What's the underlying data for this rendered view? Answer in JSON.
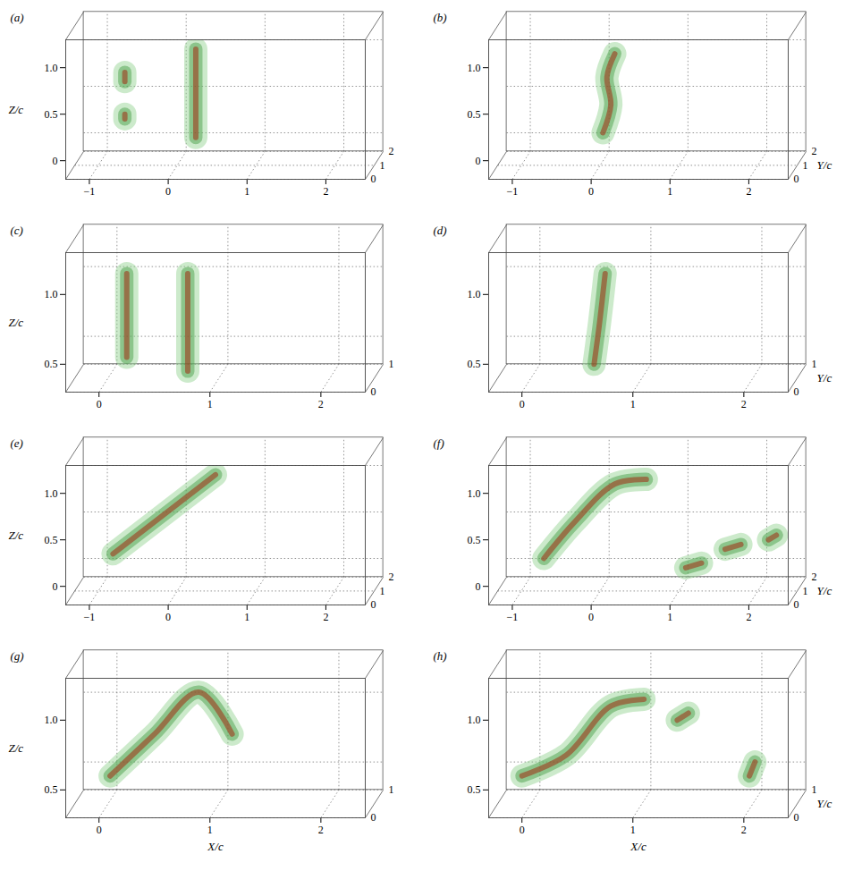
{
  "chart_data": [
    {
      "type": "isosurface",
      "panel": "(a)",
      "zlabel": "Z/c",
      "xlim": [
        -1.3,
        2.5
      ],
      "xticks": [
        -1,
        0,
        1,
        2
      ],
      "zlim": [
        -0.2,
        1.3
      ],
      "zticks": [
        0,
        0.5,
        {
          "value": 1,
          "label": "1.0"
        }
      ],
      "ylim": [
        0,
        2
      ],
      "yticks": [
        0,
        1,
        2
      ],
      "grid": true,
      "surfaces": [
        [
          [
            0.35,
            0.25
          ],
          [
            0.35,
            1.2
          ]
        ],
        [
          [
            -0.55,
            0.45
          ],
          [
            -0.55,
            0.5
          ]
        ],
        [
          [
            -0.55,
            0.85
          ],
          [
            -0.55,
            0.95
          ]
        ]
      ]
    },
    {
      "type": "isosurface",
      "panel": "(b)",
      "ylabel": "Y/c",
      "xlim": [
        -1.3,
        2.5
      ],
      "xticks": [
        -1,
        0,
        1,
        2
      ],
      "zlim": [
        -0.2,
        1.3
      ],
      "zticks": [
        0,
        0.5,
        {
          "value": 1,
          "label": "1.0"
        }
      ],
      "ylim": [
        0,
        2
      ],
      "yticks": [
        0,
        1,
        2
      ],
      "grid": true,
      "surfaces": [
        [
          [
            0.15,
            0.3
          ],
          [
            0.25,
            0.6
          ],
          [
            0.2,
            0.9
          ],
          [
            0.3,
            1.15
          ]
        ]
      ]
    },
    {
      "type": "isosurface",
      "panel": "(c)",
      "zlabel": "Z/c",
      "xlim": [
        -0.3,
        2.4
      ],
      "xticks": [
        0,
        1,
        2
      ],
      "zlim": [
        0.3,
        1.3
      ],
      "zticks": [
        0.5,
        {
          "value": 1,
          "label": "1.0"
        }
      ],
      "ylim": [
        0,
        1
      ],
      "yticks": [
        0,
        1
      ],
      "grid": true,
      "surfaces": [
        [
          [
            0.8,
            0.45
          ],
          [
            0.8,
            1.15
          ]
        ],
        [
          [
            0.25,
            0.55
          ],
          [
            0.25,
            1.15
          ]
        ]
      ]
    },
    {
      "type": "isosurface",
      "panel": "(d)",
      "ylabel": "Y/c",
      "xlim": [
        -0.3,
        2.4
      ],
      "xticks": [
        0,
        1,
        2
      ],
      "zlim": [
        0.3,
        1.3
      ],
      "zticks": [
        0.5,
        {
          "value": 1,
          "label": "1.0"
        }
      ],
      "ylim": [
        0,
        1
      ],
      "yticks": [
        0,
        1
      ],
      "grid": true,
      "surfaces": [
        [
          [
            0.65,
            0.5
          ],
          [
            0.7,
            0.8
          ],
          [
            0.75,
            1.15
          ]
        ]
      ]
    },
    {
      "type": "isosurface",
      "panel": "(e)",
      "zlabel": "Z/c",
      "xlim": [
        -1.3,
        2.5
      ],
      "xticks": [
        -1,
        0,
        1,
        2
      ],
      "zlim": [
        -0.2,
        1.3
      ],
      "zticks": [
        0,
        0.5,
        {
          "value": 1,
          "label": "1.0"
        }
      ],
      "ylim": [
        0,
        2
      ],
      "yticks": [
        0,
        1,
        2
      ],
      "grid": true,
      "surfaces": [
        [
          [
            -0.7,
            0.35
          ],
          [
            0.6,
            1.2
          ]
        ]
      ]
    },
    {
      "type": "isosurface",
      "panel": "(f)",
      "ylabel": "Y/c",
      "xlim": [
        -1.3,
        2.5
      ],
      "xticks": [
        -1,
        0,
        1,
        2
      ],
      "zlim": [
        -0.2,
        1.3
      ],
      "zticks": [
        0,
        0.5,
        {
          "value": 1,
          "label": "1.0"
        }
      ],
      "ylim": [
        0,
        2
      ],
      "yticks": [
        0,
        1,
        2
      ],
      "grid": true,
      "surfaces": [
        [
          [
            -0.6,
            0.3
          ],
          [
            -0.2,
            0.7
          ],
          [
            0.3,
            1.1
          ],
          [
            0.7,
            1.15
          ]
        ],
        [
          [
            1.2,
            0.2
          ],
          [
            1.4,
            0.25
          ]
        ],
        [
          [
            1.7,
            0.4
          ],
          [
            1.9,
            0.45
          ]
        ],
        [
          [
            2.25,
            0.5
          ],
          [
            2.35,
            0.55
          ]
        ]
      ]
    },
    {
      "type": "isosurface",
      "panel": "(g)",
      "zlabel": "Z/c",
      "xlabel": "X/c",
      "xlim": [
        -0.3,
        2.4
      ],
      "xticks": [
        0,
        1,
        2
      ],
      "zlim": [
        0.3,
        1.3
      ],
      "zticks": [
        0.5,
        {
          "value": 1,
          "label": "1.0"
        }
      ],
      "ylim": [
        0,
        1
      ],
      "yticks": [
        0,
        1
      ],
      "grid": true,
      "surfaces": [
        [
          [
            0.1,
            0.6
          ],
          [
            0.5,
            0.9
          ],
          [
            0.9,
            1.2
          ],
          [
            1.2,
            0.9
          ]
        ]
      ]
    },
    {
      "type": "isosurface",
      "panel": "(h)",
      "ylabel": "Y/c",
      "xlabel": "X/c",
      "xlim": [
        -0.3,
        2.4
      ],
      "xticks": [
        0,
        1,
        2
      ],
      "zlim": [
        0.3,
        1.3
      ],
      "zticks": [
        0.5,
        {
          "value": 1,
          "label": "1.0"
        }
      ],
      "ylim": [
        0,
        1
      ],
      "yticks": [
        0,
        1
      ],
      "grid": true,
      "surfaces": [
        [
          [
            0,
            0.6
          ],
          [
            0.4,
            0.75
          ],
          [
            0.8,
            1.1
          ],
          [
            1.1,
            1.15
          ]
        ],
        [
          [
            2.05,
            0.6
          ],
          [
            2.1,
            0.7
          ]
        ],
        [
          [
            1.4,
            1.0
          ],
          [
            1.5,
            1.05
          ]
        ]
      ]
    }
  ]
}
